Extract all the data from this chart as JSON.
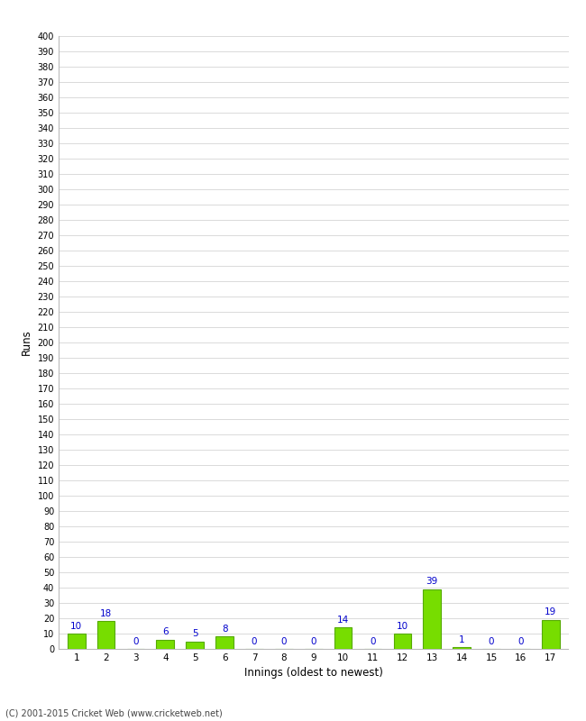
{
  "xlabel": "Innings (oldest to newest)",
  "ylabel": "Runs",
  "categories": [
    "1",
    "2",
    "3",
    "4",
    "5",
    "6",
    "7",
    "8",
    "9",
    "10",
    "11",
    "12",
    "13",
    "14",
    "15",
    "16",
    "17"
  ],
  "values": [
    10,
    18,
    0,
    6,
    5,
    8,
    0,
    0,
    0,
    14,
    0,
    10,
    39,
    1,
    0,
    0,
    19
  ],
  "bar_color": "#77dd00",
  "bar_edge_color": "#55aa00",
  "label_color": "#0000cc",
  "ylim": [
    0,
    400
  ],
  "ytick_step": 10,
  "background_color": "#ffffff",
  "grid_color": "#cccccc",
  "footer": "(C) 2001-2015 Cricket Web (www.cricketweb.net)"
}
